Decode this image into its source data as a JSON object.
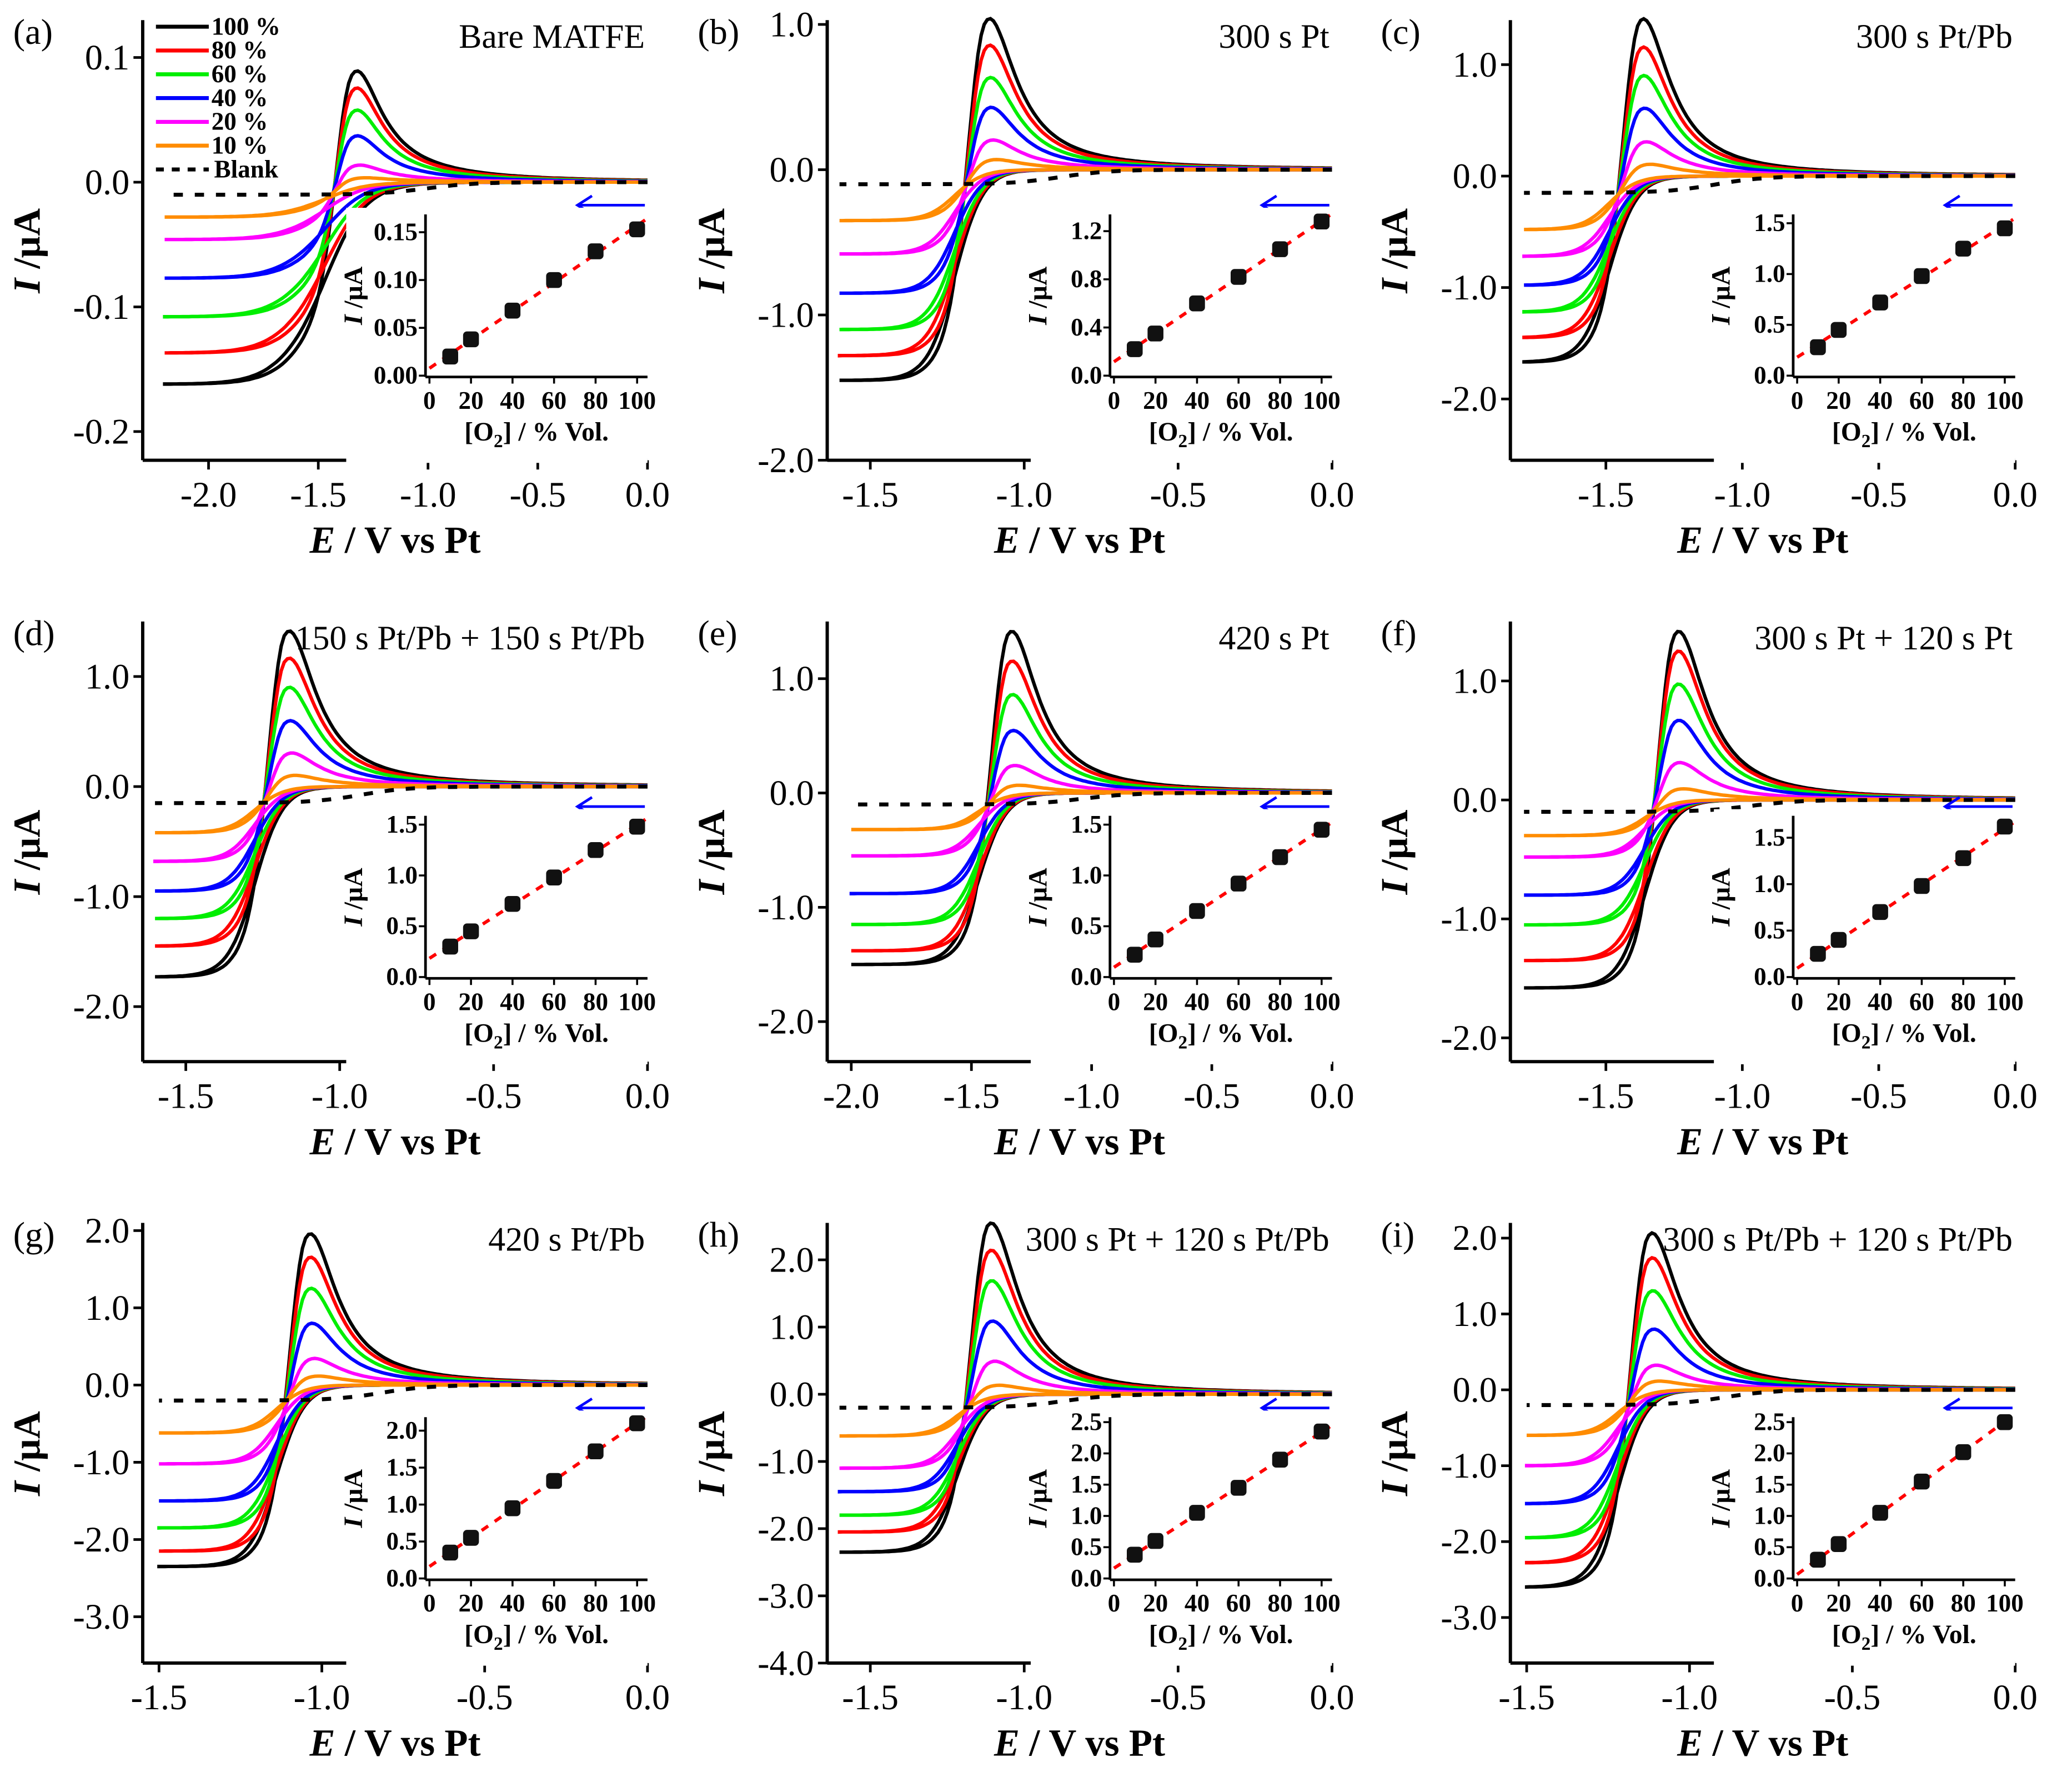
{
  "figure": {
    "xlabel_var": "E",
    "xlabel_rest": " / V vs Pt",
    "ylabel_var": "I",
    "ylabel_rest": " /µA",
    "inset_xlabel_pre": "[O",
    "inset_xlabel_sub": "2",
    "inset_xlabel_post": "] / % Vol.",
    "inset_ylabel_var": "I",
    "inset_ylabel_rest": " /µA",
    "series_colors": [
      "#000000",
      "#ff0000",
      "#00ee00",
      "#0000ff",
      "#ff00ff",
      "#ff8c00"
    ],
    "blank_color": "#000000",
    "fit_color": "#ff0000",
    "arrow_color": "#0000ff",
    "legend": {
      "items": [
        "100 %",
        "80 %",
        "60 %",
        "40 %",
        "20 %",
        "10 %"
      ],
      "blank": "Blank"
    }
  },
  "chart_data": [
    {
      "type": "line",
      "label": "(a)",
      "title": "Bare MATFE",
      "xlim": [
        -2.3,
        0
      ],
      "ylim": [
        -0.223,
        0.13
      ],
      "xticks": [
        "-2.0",
        "-1.5",
        "-1.0",
        "-0.5",
        "0.0"
      ],
      "yticks": [
        "0.1",
        "0.0",
        "-0.1",
        "-0.2"
      ],
      "scan_start": -2.2,
      "peak_potential": -1.35,
      "blank_current": -0.01,
      "series": [
        {
          "o2_percent": 100,
          "peak_current": 0.085,
          "limiting_current": -0.162
        },
        {
          "o2_percent": 80,
          "peak_current": 0.072,
          "limiting_current": -0.137
        },
        {
          "o2_percent": 60,
          "peak_current": 0.055,
          "limiting_current": -0.108
        },
        {
          "o2_percent": 40,
          "peak_current": 0.035,
          "limiting_current": -0.077
        },
        {
          "o2_percent": 20,
          "peak_current": 0.012,
          "limiting_current": -0.046
        },
        {
          "o2_percent": 10,
          "peak_current": 0.002,
          "limiting_current": -0.028
        }
      ],
      "inset": {
        "type": "scatter",
        "x": [
          10,
          20,
          40,
          60,
          80,
          100
        ],
        "y": [
          0.02,
          0.038,
          0.068,
          0.1,
          0.13,
          0.153
        ],
        "xticks": [
          "0",
          "20",
          "40",
          "60",
          "80",
          "100"
        ],
        "yticks": [
          "0.00",
          "0.05",
          "0.10",
          "0.15"
        ],
        "ylim": [
          0,
          0.17
        ]
      }
    },
    {
      "type": "line",
      "label": "(b)",
      "title": "300 s Pt",
      "xlim": [
        -1.64,
        0
      ],
      "ylim": [
        -2.0,
        1.03
      ],
      "xticks": [
        "-1.5",
        "-1.0",
        "-0.5",
        "0.0"
      ],
      "yticks": [
        "1.0",
        "0.0",
        "-1.0",
        "-2.0"
      ],
      "scan_start": -1.6,
      "peak_potential": -1.13,
      "blank_current": -0.1,
      "series": [
        {
          "o2_percent": 100,
          "peak_current": 1.0,
          "limiting_current": -1.45
        },
        {
          "o2_percent": 80,
          "peak_current": 0.82,
          "limiting_current": -1.28
        },
        {
          "o2_percent": 60,
          "peak_current": 0.6,
          "limiting_current": -1.1
        },
        {
          "o2_percent": 40,
          "peak_current": 0.4,
          "limiting_current": -0.85
        },
        {
          "o2_percent": 20,
          "peak_current": 0.18,
          "limiting_current": -0.58
        },
        {
          "o2_percent": 10,
          "peak_current": 0.05,
          "limiting_current": -0.35
        }
      ],
      "inset": {
        "type": "scatter",
        "x": [
          10,
          20,
          40,
          60,
          80,
          100
        ],
        "y": [
          0.22,
          0.35,
          0.6,
          0.82,
          1.05,
          1.28
        ],
        "xticks": [
          "0",
          "20",
          "40",
          "60",
          "80",
          "100"
        ],
        "yticks": [
          "0.0",
          "0.4",
          "0.8",
          "1.2"
        ],
        "ylim": [
          0,
          1.35
        ]
      }
    },
    {
      "type": "line",
      "label": "(c)",
      "title": "300 s Pt/Pb",
      "xlim": [
        -1.85,
        0
      ],
      "ylim": [
        -2.55,
        1.4
      ],
      "xticks": [
        "-1.5",
        "-1.0",
        "-0.5",
        "0.0"
      ],
      "yticks": [
        "1.0",
        "0.0",
        "-1.0",
        "-2.0"
      ],
      "scan_start": -1.8,
      "peak_potential": -1.38,
      "blank_current": -0.15,
      "series": [
        {
          "o2_percent": 100,
          "peak_current": 1.37,
          "limiting_current": -1.67
        },
        {
          "o2_percent": 80,
          "peak_current": 1.12,
          "limiting_current": -1.45
        },
        {
          "o2_percent": 60,
          "peak_current": 0.87,
          "limiting_current": -1.22
        },
        {
          "o2_percent": 40,
          "peak_current": 0.58,
          "limiting_current": -0.98
        },
        {
          "o2_percent": 20,
          "peak_current": 0.28,
          "limiting_current": -0.72
        },
        {
          "o2_percent": 10,
          "peak_current": 0.08,
          "limiting_current": -0.48
        }
      ],
      "inset": {
        "type": "scatter",
        "x": [
          10,
          20,
          40,
          60,
          80,
          100
        ],
        "y": [
          0.28,
          0.45,
          0.72,
          0.98,
          1.25,
          1.45
        ],
        "xticks": [
          "0",
          "20",
          "40",
          "60",
          "80",
          "100"
        ],
        "yticks": [
          "0.0",
          "0.5",
          "1.0",
          "1.5"
        ],
        "ylim": [
          0,
          1.6
        ]
      }
    },
    {
      "type": "line",
      "label": "(d)",
      "title": "150 s Pt/Pb + 150 s Pt/Pb",
      "xlim": [
        -1.64,
        0
      ],
      "ylim": [
        -2.5,
        1.5
      ],
      "xticks": [
        "-1.5",
        "-1.0",
        "-0.5",
        "0.0"
      ],
      "yticks": [
        "1.0",
        "0.0",
        "-1.0",
        "-2.0"
      ],
      "scan_start": -1.6,
      "peak_potential": -1.18,
      "blank_current": -0.15,
      "series": [
        {
          "o2_percent": 100,
          "peak_current": 1.37,
          "limiting_current": -1.73
        },
        {
          "o2_percent": 80,
          "peak_current": 1.13,
          "limiting_current": -1.45
        },
        {
          "o2_percent": 60,
          "peak_current": 0.87,
          "limiting_current": -1.2
        },
        {
          "o2_percent": 40,
          "peak_current": 0.57,
          "limiting_current": -0.95
        },
        {
          "o2_percent": 20,
          "peak_current": 0.28,
          "limiting_current": -0.68
        },
        {
          "o2_percent": 10,
          "peak_current": 0.08,
          "limiting_current": -0.42
        }
      ],
      "inset": {
        "type": "scatter",
        "x": [
          10,
          20,
          40,
          60,
          80,
          100
        ],
        "y": [
          0.3,
          0.45,
          0.72,
          0.98,
          1.25,
          1.48
        ],
        "xticks": [
          "0",
          "20",
          "40",
          "60",
          "80",
          "100"
        ],
        "yticks": [
          "0.0",
          "0.5",
          "1.0",
          "1.5"
        ],
        "ylim": [
          0,
          1.6
        ]
      }
    },
    {
      "type": "line",
      "label": "(e)",
      "title": "420 s Pt",
      "xlim": [
        -2.1,
        0
      ],
      "ylim": [
        -2.35,
        1.5
      ],
      "xticks": [
        "-2.0",
        "-1.5",
        "-1.0",
        "-0.5",
        "0.0"
      ],
      "yticks": [
        "1.0",
        "0.0",
        "-1.0",
        "-2.0"
      ],
      "scan_start": -2.0,
      "peak_potential": -1.35,
      "blank_current": -0.1,
      "series": [
        {
          "o2_percent": 100,
          "peak_current": 1.38,
          "limiting_current": -1.5
        },
        {
          "o2_percent": 80,
          "peak_current": 1.12,
          "limiting_current": -1.38
        },
        {
          "o2_percent": 60,
          "peak_current": 0.83,
          "limiting_current": -1.15
        },
        {
          "o2_percent": 40,
          "peak_current": 0.52,
          "limiting_current": -0.88
        },
        {
          "o2_percent": 20,
          "peak_current": 0.22,
          "limiting_current": -0.55
        },
        {
          "o2_percent": 10,
          "peak_current": 0.05,
          "limiting_current": -0.32
        }
      ],
      "inset": {
        "type": "scatter",
        "x": [
          10,
          20,
          40,
          60,
          80,
          100
        ],
        "y": [
          0.22,
          0.37,
          0.65,
          0.92,
          1.18,
          1.45
        ],
        "xticks": [
          "0",
          "20",
          "40",
          "60",
          "80",
          "100"
        ],
        "yticks": [
          "0.0",
          "0.5",
          "1.0",
          "1.5"
        ],
        "ylim": [
          0,
          1.6
        ]
      }
    },
    {
      "type": "line",
      "label": "(f)",
      "title": "300 s Pt + 120 s Pt",
      "xlim": [
        -1.85,
        0
      ],
      "ylim": [
        -2.2,
        1.5
      ],
      "xticks": [
        "-1.5",
        "-1.0",
        "-0.5",
        "0.0"
      ],
      "yticks": [
        "1.0",
        "0.0",
        "-1.0",
        "-2.0"
      ],
      "scan_start": -1.8,
      "peak_potential": -1.25,
      "blank_current": -0.1,
      "series": [
        {
          "o2_percent": 100,
          "peak_current": 1.38,
          "limiting_current": -1.58
        },
        {
          "o2_percent": 80,
          "peak_current": 1.22,
          "limiting_current": -1.35
        },
        {
          "o2_percent": 60,
          "peak_current": 0.95,
          "limiting_current": -1.05
        },
        {
          "o2_percent": 40,
          "peak_current": 0.65,
          "limiting_current": -0.8
        },
        {
          "o2_percent": 20,
          "peak_current": 0.3,
          "limiting_current": -0.48
        },
        {
          "o2_percent": 10,
          "peak_current": 0.08,
          "limiting_current": -0.3
        }
      ],
      "inset": {
        "type": "scatter",
        "x": [
          10,
          20,
          40,
          60,
          80,
          100
        ],
        "y": [
          0.25,
          0.4,
          0.7,
          0.98,
          1.28,
          1.62
        ],
        "xticks": [
          "0",
          "20",
          "40",
          "60",
          "80",
          "100"
        ],
        "yticks": [
          "0.0",
          "0.5",
          "1.0",
          "1.5"
        ],
        "ylim": [
          0,
          1.75
        ]
      }
    },
    {
      "type": "line",
      "label": "(g)",
      "title": "420 s Pt/Pb",
      "xlim": [
        -1.55,
        0
      ],
      "ylim": [
        -3.6,
        2.1
      ],
      "xticks": [
        "-1.5",
        "-1.0",
        "-0.5",
        "0.0"
      ],
      "yticks": [
        "2.0",
        "1.0",
        "0.0",
        "-1.0",
        "-2.0",
        "-3.0"
      ],
      "scan_start": -1.5,
      "peak_potential": -1.05,
      "blank_current": -0.2,
      "series": [
        {
          "o2_percent": 100,
          "peak_current": 1.9,
          "limiting_current": -2.35
        },
        {
          "o2_percent": 80,
          "peak_current": 1.6,
          "limiting_current": -2.15
        },
        {
          "o2_percent": 60,
          "peak_current": 1.2,
          "limiting_current": -1.85
        },
        {
          "o2_percent": 40,
          "peak_current": 0.75,
          "limiting_current": -1.5
        },
        {
          "o2_percent": 20,
          "peak_current": 0.3,
          "limiting_current": -1.02
        },
        {
          "o2_percent": 10,
          "peak_current": 0.08,
          "limiting_current": -0.62
        }
      ],
      "inset": {
        "type": "scatter",
        "x": [
          10,
          20,
          40,
          60,
          80,
          100
        ],
        "y": [
          0.35,
          0.55,
          0.95,
          1.32,
          1.72,
          2.1
        ],
        "xticks": [
          "0",
          "20",
          "40",
          "60",
          "80",
          "100"
        ],
        "yticks": [
          "0.0",
          "0.5",
          "1.0",
          "1.5",
          "2.0"
        ],
        "ylim": [
          0,
          2.2
        ]
      }
    },
    {
      "type": "line",
      "label": "(h)",
      "title": "300 s Pt + 120 s Pt/Pb",
      "xlim": [
        -1.64,
        0
      ],
      "ylim": [
        -4.0,
        2.55
      ],
      "xticks": [
        "-1.5",
        "-1.0",
        "-0.5",
        "0.0"
      ],
      "yticks": [
        "2.0",
        "1.0",
        "0.0",
        "-1.0",
        "-2.0",
        "-3.0",
        "-4.0"
      ],
      "scan_start": -1.6,
      "peak_potential": -1.12,
      "blank_current": -0.2,
      "series": [
        {
          "o2_percent": 100,
          "peak_current": 2.5,
          "limiting_current": -2.35
        },
        {
          "o2_percent": 80,
          "peak_current": 2.1,
          "limiting_current": -2.05
        },
        {
          "o2_percent": 60,
          "peak_current": 1.65,
          "limiting_current": -1.8
        },
        {
          "o2_percent": 40,
          "peak_current": 1.05,
          "limiting_current": -1.45
        },
        {
          "o2_percent": 20,
          "peak_current": 0.45,
          "limiting_current": -1.1
        },
        {
          "o2_percent": 10,
          "peak_current": 0.1,
          "limiting_current": -0.62
        }
      ],
      "inset": {
        "type": "scatter",
        "x": [
          10,
          20,
          40,
          60,
          80,
          100
        ],
        "y": [
          0.38,
          0.6,
          1.05,
          1.45,
          1.9,
          2.35
        ],
        "xticks": [
          "0",
          "20",
          "40",
          "60",
          "80",
          "100"
        ],
        "yticks": [
          "0.0",
          "0.5",
          "1.0",
          "1.5",
          "2.0",
          "2.5"
        ],
        "ylim": [
          0,
          2.6
        ]
      }
    },
    {
      "type": "line",
      "label": "(i)",
      "title": "300 s Pt/Pb + 120 s Pt/Pb",
      "xlim": [
        -1.55,
        0
      ],
      "ylim": [
        -3.6,
        2.2
      ],
      "xticks": [
        "-1.5",
        "-1.0",
        "-0.5",
        "0.0"
      ],
      "yticks": [
        "2.0",
        "1.0",
        "0.0",
        "-1.0",
        "-2.0",
        "-3.0"
      ],
      "scan_start": -1.5,
      "peak_potential": -1.13,
      "blank_current": -0.2,
      "series": [
        {
          "o2_percent": 100,
          "peak_current": 2.0,
          "limiting_current": -2.6
        },
        {
          "o2_percent": 80,
          "peak_current": 1.68,
          "limiting_current": -2.28
        },
        {
          "o2_percent": 60,
          "peak_current": 1.25,
          "limiting_current": -1.95
        },
        {
          "o2_percent": 40,
          "peak_current": 0.75,
          "limiting_current": -1.5
        },
        {
          "o2_percent": 20,
          "peak_current": 0.28,
          "limiting_current": -1.0
        },
        {
          "o2_percent": 10,
          "peak_current": 0.08,
          "limiting_current": -0.6
        }
      ],
      "inset": {
        "type": "scatter",
        "x": [
          10,
          20,
          40,
          60,
          80,
          100
        ],
        "y": [
          0.3,
          0.55,
          1.05,
          1.55,
          2.02,
          2.5
        ],
        "xticks": [
          "0",
          "20",
          "40",
          "60",
          "80",
          "100"
        ],
        "yticks": [
          "0.0",
          "0.5",
          "1.0",
          "1.5",
          "2.0",
          "2.5"
        ],
        "ylim": [
          0,
          2.6
        ]
      }
    }
  ]
}
